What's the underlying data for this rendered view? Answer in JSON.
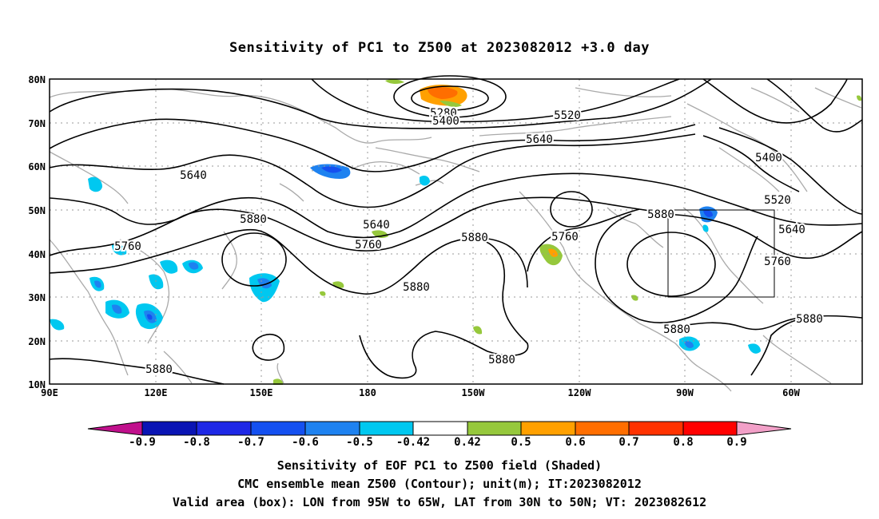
{
  "title": "Sensitivity of PC1 to Z500 at 2023082012 +3.0 day",
  "map": {
    "lat_labels": [
      "80N",
      "70N",
      "60N",
      "50N",
      "40N",
      "30N",
      "20N",
      "10N"
    ],
    "lon_labels": [
      "90E",
      "120E",
      "150E",
      "180",
      "150W",
      "120W",
      "90W",
      "60W"
    ],
    "valid_box": {
      "lon_from": "95W",
      "lon_to": "65W",
      "lat_from": "30N",
      "lat_to": "50N"
    },
    "contour_labels": [
      "5280",
      "5400",
      "5520",
      "5640",
      "5640",
      "5400",
      "5520",
      "5640",
      "5640",
      "5760",
      "5880",
      "5880",
      "5760",
      "5760",
      "5880",
      "5880",
      "5880",
      "5880",
      "5880",
      "5760",
      "5880",
      "5880"
    ],
    "colors": {
      "contour": "#000000",
      "coastline": "#aaaaaa",
      "grid": "#999999"
    }
  },
  "colorbar": {
    "labels": [
      "-0.9",
      "-0.8",
      "-0.7",
      "-0.6",
      "-0.5",
      "-0.42",
      "0.42",
      "0.5",
      "0.6",
      "0.7",
      "0.8",
      "0.9"
    ],
    "colors": [
      "#c0108c",
      "#0a14b4",
      "#1e28e6",
      "#1450f0",
      "#1e82f0",
      "#00c8f0",
      "#ffffff",
      "#96c83c",
      "#ffa000",
      "#ff6e00",
      "#ff3200",
      "#ff0000",
      "#f2a0c8"
    ]
  },
  "captions": [
    "Sensitivity of EOF PC1 to Z500 field (Shaded)",
    "CMC ensemble mean Z500 (Contour); unit(m); IT:2023082012",
    "Valid area (box): LON from 95W to 65W, LAT from 30N to 50N; VT: 2023082612"
  ]
}
